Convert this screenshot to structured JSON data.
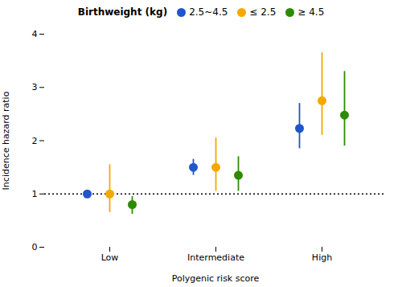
{
  "chart_data": {
    "type": "errorbar",
    "xlabel": "Polygenic risk score",
    "ylabel": "Incidence hazard ratio",
    "categories": [
      "Low",
      "Intermediate",
      "High"
    ],
    "series": [
      {
        "name": "2.5~4.5",
        "color": "#2155CC",
        "values": [
          1.0,
          1.5,
          2.23
        ],
        "lower": [
          1.0,
          1.35,
          1.85
        ],
        "upper": [
          1.0,
          1.65,
          2.7
        ]
      },
      {
        "name": "≤ 2.5",
        "color": "#F5A800",
        "values": [
          1.0,
          1.5,
          2.75
        ],
        "lower": [
          0.65,
          1.05,
          2.1
        ],
        "upper": [
          1.55,
          2.05,
          3.65
        ]
      },
      {
        "name": "≥ 4.5",
        "color": "#2E8B00",
        "values": [
          0.8,
          1.35,
          2.48
        ],
        "lower": [
          0.62,
          1.05,
          1.9
        ],
        "upper": [
          0.95,
          1.7,
          3.3
        ]
      }
    ],
    "legend_title": "Birthweight (kg)",
    "legend": "top",
    "reference_line": {
      "y": 1.0,
      "line_style": "dotted"
    },
    "ylim": [
      0,
      4
    ],
    "yticks": [
      0,
      1,
      2,
      3,
      4
    ],
    "grid": false
  }
}
